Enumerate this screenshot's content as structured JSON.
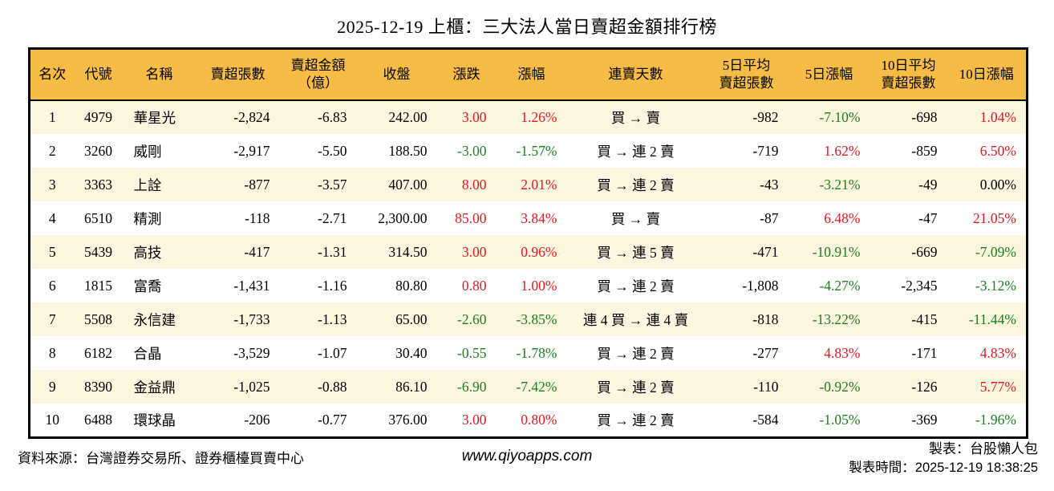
{
  "title": "2025-12-19 上櫃：三大法人當日賣超金額排行榜",
  "colors": {
    "up": "#de1a21",
    "down": "#1e7d1e",
    "flat": "#000000",
    "header_bg": "#f6bc45",
    "row_alt_bg": "#fcf5df",
    "border": "#000000"
  },
  "chart_data": {
    "type": "table",
    "title": "2025-12-19 上櫃：三大法人當日賣超金額排行榜",
    "legend_note": "red = up, green = down (Taiwan convention)",
    "columns": [
      {
        "key": "rank",
        "label": "名次"
      },
      {
        "key": "code",
        "label": "代號"
      },
      {
        "key": "name",
        "label": "名稱"
      },
      {
        "key": "net_sell",
        "label": "賣超張數"
      },
      {
        "key": "amount",
        "label": "賣超金額\n（億）"
      },
      {
        "key": "close",
        "label": "收盤"
      },
      {
        "key": "change",
        "label": "漲跌"
      },
      {
        "key": "change_pct",
        "label": "漲幅"
      },
      {
        "key": "streak",
        "label": "連賣天數"
      },
      {
        "key": "avg5",
        "label": "5日平均\n賣超張數"
      },
      {
        "key": "pct5",
        "label": "5日漲幅"
      },
      {
        "key": "avg10",
        "label": "10日平均\n賣超張數"
      },
      {
        "key": "pct10",
        "label": "10日漲幅"
      }
    ],
    "rows": [
      {
        "rank": "1",
        "code": "4979",
        "name": "華星光",
        "net_sell": "-2,824",
        "amount": "-6.83",
        "close": "242.00",
        "change": "3.00",
        "change_tone": "up",
        "change_pct": "1.26%",
        "change_pct_tone": "up",
        "streak": "買 → 賣",
        "avg5": "-982",
        "pct5": "-7.10%",
        "pct5_tone": "down",
        "avg10": "-698",
        "pct10": "1.04%",
        "pct10_tone": "up"
      },
      {
        "rank": "2",
        "code": "3260",
        "name": "威剛",
        "net_sell": "-2,917",
        "amount": "-5.50",
        "close": "188.50",
        "change": "-3.00",
        "change_tone": "down",
        "change_pct": "-1.57%",
        "change_pct_tone": "down",
        "streak": "買 → 連 2 賣",
        "avg5": "-719",
        "pct5": "1.62%",
        "pct5_tone": "up",
        "avg10": "-859",
        "pct10": "6.50%",
        "pct10_tone": "up"
      },
      {
        "rank": "3",
        "code": "3363",
        "name": "上詮",
        "net_sell": "-877",
        "amount": "-3.57",
        "close": "407.00",
        "change": "8.00",
        "change_tone": "up",
        "change_pct": "2.01%",
        "change_pct_tone": "up",
        "streak": "買 → 連 2 賣",
        "avg5": "-43",
        "pct5": "-3.21%",
        "pct5_tone": "down",
        "avg10": "-49",
        "pct10": "0.00%",
        "pct10_tone": "flat"
      },
      {
        "rank": "4",
        "code": "6510",
        "name": "精測",
        "net_sell": "-118",
        "amount": "-2.71",
        "close": "2,300.00",
        "change": "85.00",
        "change_tone": "up",
        "change_pct": "3.84%",
        "change_pct_tone": "up",
        "streak": "買 → 賣",
        "avg5": "-87",
        "pct5": "6.48%",
        "pct5_tone": "up",
        "avg10": "-47",
        "pct10": "21.05%",
        "pct10_tone": "up"
      },
      {
        "rank": "5",
        "code": "5439",
        "name": "高技",
        "net_sell": "-417",
        "amount": "-1.31",
        "close": "314.50",
        "change": "3.00",
        "change_tone": "up",
        "change_pct": "0.96%",
        "change_pct_tone": "up",
        "streak": "買 → 連 5 賣",
        "avg5": "-471",
        "pct5": "-10.91%",
        "pct5_tone": "down",
        "avg10": "-669",
        "pct10": "-7.09%",
        "pct10_tone": "down"
      },
      {
        "rank": "6",
        "code": "1815",
        "name": "富喬",
        "net_sell": "-1,431",
        "amount": "-1.16",
        "close": "80.80",
        "change": "0.80",
        "change_tone": "up",
        "change_pct": "1.00%",
        "change_pct_tone": "up",
        "streak": "買 → 連 2 賣",
        "avg5": "-1,808",
        "pct5": "-4.27%",
        "pct5_tone": "down",
        "avg10": "-2,345",
        "pct10": "-3.12%",
        "pct10_tone": "down"
      },
      {
        "rank": "7",
        "code": "5508",
        "name": "永信建",
        "net_sell": "-1,733",
        "amount": "-1.13",
        "close": "65.00",
        "change": "-2.60",
        "change_tone": "down",
        "change_pct": "-3.85%",
        "change_pct_tone": "down",
        "streak": "連 4 買 → 連 4 賣",
        "avg5": "-818",
        "pct5": "-13.22%",
        "pct5_tone": "down",
        "avg10": "-415",
        "pct10": "-11.44%",
        "pct10_tone": "down"
      },
      {
        "rank": "8",
        "code": "6182",
        "name": "合晶",
        "net_sell": "-3,529",
        "amount": "-1.07",
        "close": "30.40",
        "change": "-0.55",
        "change_tone": "down",
        "change_pct": "-1.78%",
        "change_pct_tone": "down",
        "streak": "買 → 連 2 賣",
        "avg5": "-277",
        "pct5": "4.83%",
        "pct5_tone": "up",
        "avg10": "-171",
        "pct10": "4.83%",
        "pct10_tone": "up"
      },
      {
        "rank": "9",
        "code": "8390",
        "name": "金益鼎",
        "net_sell": "-1,025",
        "amount": "-0.88",
        "close": "86.10",
        "change": "-6.90",
        "change_tone": "down",
        "change_pct": "-7.42%",
        "change_pct_tone": "down",
        "streak": "買 → 連 2 賣",
        "avg5": "-110",
        "pct5": "-0.92%",
        "pct5_tone": "down",
        "avg10": "-126",
        "pct10": "5.77%",
        "pct10_tone": "up"
      },
      {
        "rank": "10",
        "code": "6488",
        "name": "環球晶",
        "net_sell": "-206",
        "amount": "-0.77",
        "close": "376.00",
        "change": "3.00",
        "change_tone": "up",
        "change_pct": "0.80%",
        "change_pct_tone": "up",
        "streak": "買 → 連 2 賣",
        "avg5": "-584",
        "pct5": "-1.05%",
        "pct5_tone": "down",
        "avg10": "-369",
        "pct10": "-1.96%",
        "pct10_tone": "down"
      }
    ]
  },
  "footer": {
    "source": "資料來源：台灣證券交易所、證券櫃檯買賣中心",
    "site": "www.qiyoapps.com",
    "maker": "製表：台股懶人包",
    "time": "製表時間：2025-12-19 18:38:25"
  }
}
